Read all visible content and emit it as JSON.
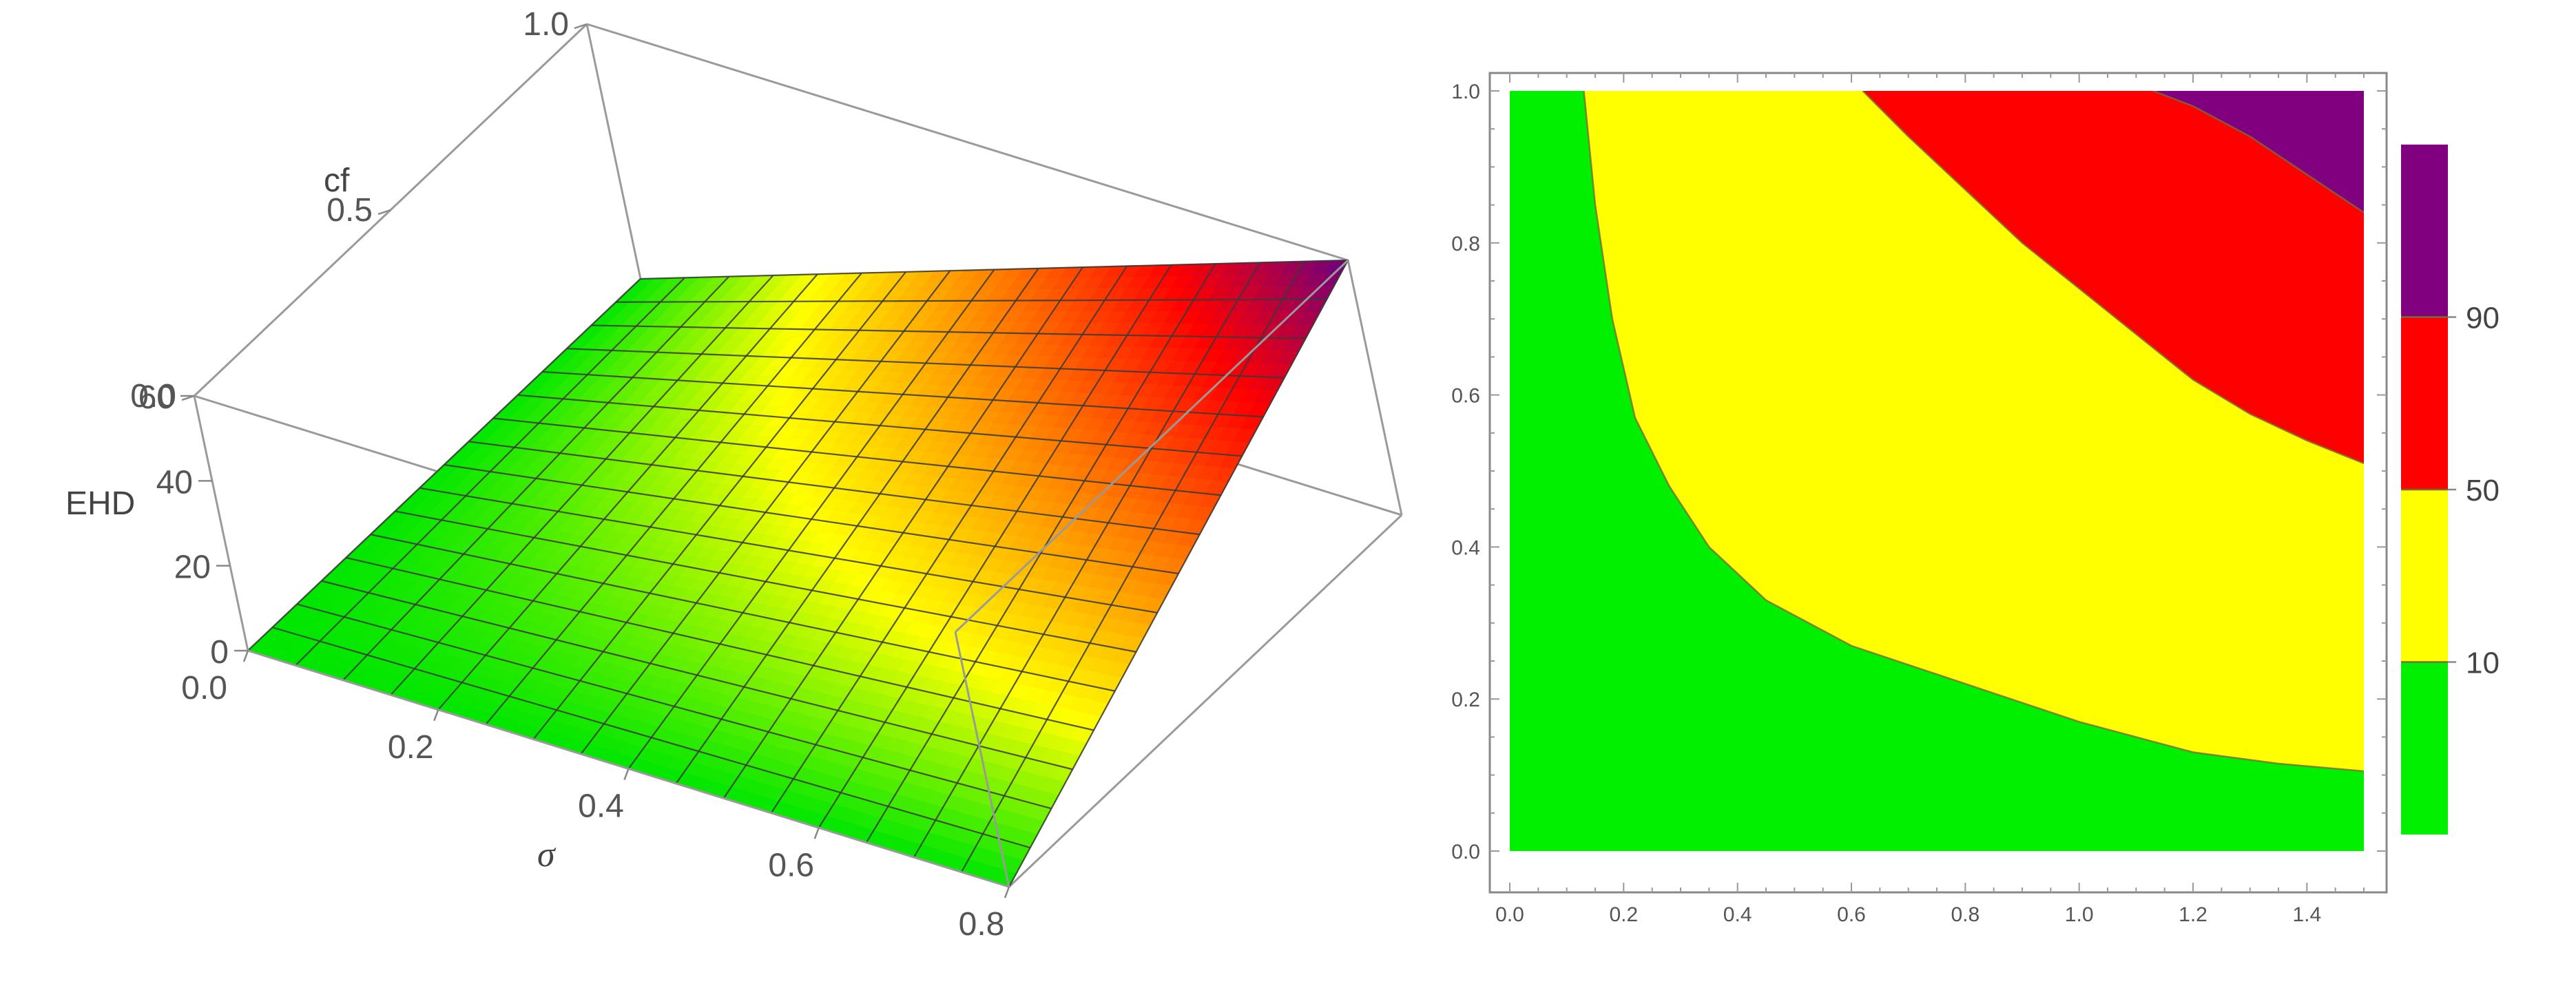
{
  "chart_data": [
    {
      "type": "surface3d",
      "title": "",
      "axes": {
        "x": {
          "label": "σ",
          "range": [
            0,
            0.8
          ],
          "ticks": [
            "0.0",
            "0.2",
            "0.4",
            "0.6",
            "0.8"
          ]
        },
        "y": {
          "label": "cf",
          "range": [
            0,
            1.0
          ],
          "ticks": [
            "0.0",
            "0.5",
            "1.0"
          ]
        },
        "z": {
          "label": "EHD",
          "range": [
            0,
            60
          ],
          "ticks": [
            "0",
            "20",
            "40",
            "60"
          ]
        }
      },
      "mesh": {
        "x_divisions": 16,
        "y_divisions": 16
      },
      "surface_samples": [
        {
          "x": 0,
          "y": 0,
          "z": 0
        },
        {
          "x": 0,
          "y": 1.0,
          "z": 0
        },
        {
          "x": 0.8,
          "y": 0,
          "z": 0
        },
        {
          "x": 0.8,
          "y": 1.0,
          "z": 60
        }
      ],
      "colormap": [
        "#00e600",
        "#ffff00",
        "#ff8000",
        "#ff0000",
        "#6a0080"
      ]
    },
    {
      "type": "contour",
      "title": "",
      "xlim": [
        0,
        1.5
      ],
      "ylim": [
        0,
        1.0
      ],
      "x_ticks": [
        "0.0",
        "0.2",
        "0.4",
        "0.6",
        "0.8",
        "1.0",
        "1.2",
        "1.4"
      ],
      "y_ticks": [
        "0.0",
        "0.2",
        "0.4",
        "0.6",
        "0.8",
        "1.0"
      ],
      "contour_levels": [
        10,
        50,
        90
      ],
      "contour_lines": [
        {
          "level": 10,
          "points": [
            [
              0.13,
              1.0
            ],
            [
              0.15,
              0.85
            ],
            [
              0.18,
              0.7
            ],
            [
              0.22,
              0.57
            ],
            [
              0.28,
              0.48
            ],
            [
              0.35,
              0.4
            ],
            [
              0.45,
              0.33
            ],
            [
              0.6,
              0.27
            ],
            [
              0.8,
              0.22
            ],
            [
              1.0,
              0.17
            ],
            [
              1.2,
              0.13
            ],
            [
              1.35,
              0.115
            ],
            [
              1.5,
              0.105
            ]
          ]
        },
        {
          "level": 50,
          "points": [
            [
              0.62,
              1.0
            ],
            [
              0.7,
              0.94
            ],
            [
              0.8,
              0.87
            ],
            [
              0.9,
              0.8
            ],
            [
              1.0,
              0.74
            ],
            [
              1.1,
              0.68
            ],
            [
              1.2,
              0.62
            ],
            [
              1.3,
              0.575
            ],
            [
              1.4,
              0.54
            ],
            [
              1.5,
              0.51
            ]
          ]
        },
        {
          "level": 90,
          "points": [
            [
              1.13,
              1.0
            ],
            [
              1.2,
              0.98
            ],
            [
              1.3,
              0.94
            ],
            [
              1.4,
              0.89
            ],
            [
              1.5,
              0.84
            ]
          ]
        }
      ],
      "regions": [
        {
          "range": "<10",
          "color": "#00f000"
        },
        {
          "range": "10-50",
          "color": "#ffff00"
        },
        {
          "range": "50-90",
          "color": "#ff0000"
        },
        {
          "range": ">90",
          "color": "#800080"
        }
      ],
      "legend": {
        "placement": "right",
        "labels": [
          "10",
          "50",
          "90"
        ],
        "colors": [
          "#00f000",
          "#ffff00",
          "#ff0000",
          "#800080"
        ]
      }
    }
  ]
}
